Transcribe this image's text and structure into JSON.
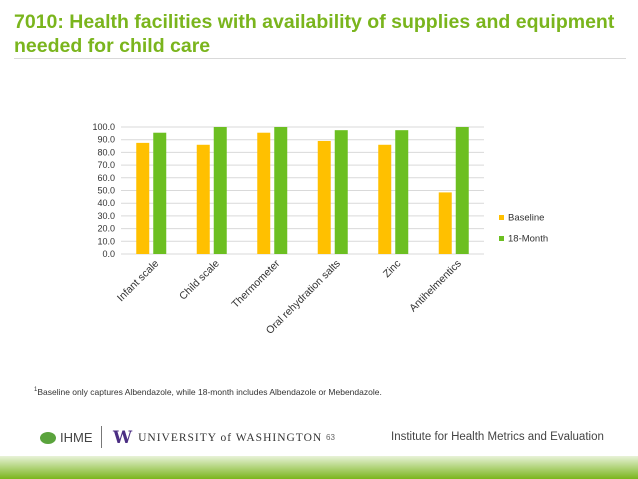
{
  "title": "7010: Health facilities with availability of supplies and equipment needed for child care",
  "footnote": {
    "marker": "1",
    "text": "Baseline only captures Albendazole, while 18-month includes Albendazole or Mebendazole."
  },
  "footer": {
    "ihme": "IHME",
    "uw_letter": "W",
    "uw_text": "UNIVERSITY of WASHINGTON",
    "page_number": "63",
    "institute": "Institute for Health Metrics and Evaluation"
  },
  "colors": {
    "title": "#7ab51d",
    "baseline": "#ffc000",
    "month18": "#6cbf21",
    "grid": "#d9d9d9"
  },
  "chart_data": {
    "type": "bar",
    "title": "",
    "xlabel": "",
    "ylabel": "",
    "categories": [
      "Infant scale",
      "Child scale",
      "Thermometer",
      "Oral rehydration salts",
      "Zinc",
      "Antihelmentics"
    ],
    "series": [
      {
        "name": "Baseline",
        "values": [
          87.5,
          86.0,
          95.5,
          89.0,
          86.0,
          48.5
        ]
      },
      {
        "name": "18-Month",
        "values": [
          95.5,
          100.0,
          100.0,
          97.5,
          97.5,
          100.0
        ]
      }
    ],
    "ylim": [
      0,
      100
    ],
    "yticks": [
      "0.0",
      "10.0",
      "20.0",
      "30.0",
      "40.0",
      "50.0",
      "60.0",
      "70.0",
      "80.0",
      "90.0",
      "100.0"
    ],
    "grid": true,
    "legend_position": "right"
  }
}
